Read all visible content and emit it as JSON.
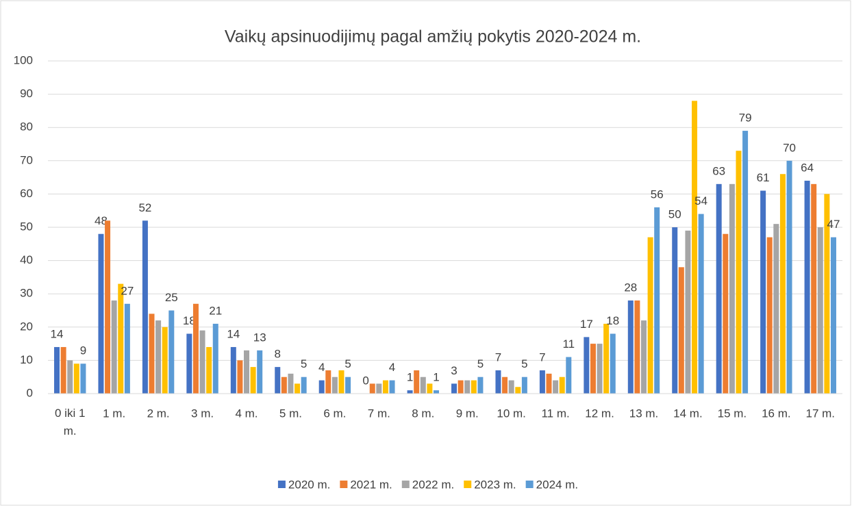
{
  "chart_data": {
    "type": "bar",
    "title": "Vaikų apsinuodijimų pagal amžių pokytis 2020-2024 m.",
    "categories": [
      "0 iki 1 m.",
      "1 m.",
      "2 m.",
      "3 m.",
      "4 m.",
      "5 m.",
      "6 m.",
      "7 m.",
      "8 m.",
      "9 m.",
      "10 m.",
      "11 m.",
      "12 m.",
      "13 m.",
      "14 m.",
      "15 m.",
      "16 m.",
      "17 m."
    ],
    "series": [
      {
        "name": "2020 m.",
        "color": "#4472c4",
        "data_labels": true,
        "values": [
          14,
          48,
          52,
          18,
          14,
          8,
          4,
          0,
          1,
          3,
          7,
          7,
          17,
          28,
          50,
          63,
          61,
          64
        ]
      },
      {
        "name": "2021 m.",
        "color": "#ed7d31",
        "data_labels": false,
        "values": [
          14,
          52,
          24,
          27,
          10,
          5,
          7,
          3,
          7,
          4,
          5,
          6,
          15,
          28,
          38,
          48,
          47,
          63
        ]
      },
      {
        "name": "2022 m.",
        "color": "#a5a5a5",
        "data_labels": false,
        "values": [
          10,
          28,
          22,
          19,
          13,
          6,
          5,
          3,
          5,
          4,
          4,
          4,
          15,
          22,
          49,
          63,
          51,
          50
        ]
      },
      {
        "name": "2023 m.",
        "color": "#ffc000",
        "data_labels": false,
        "values": [
          9,
          33,
          20,
          14,
          8,
          3,
          7,
          4,
          3,
          4,
          2,
          5,
          21,
          47,
          88,
          73,
          66,
          60
        ]
      },
      {
        "name": "2024 m.",
        "color": "#5b9bd5",
        "data_labels": true,
        "values": [
          9,
          27,
          25,
          21,
          13,
          5,
          5,
          4,
          1,
          5,
          5,
          11,
          18,
          56,
          54,
          79,
          70,
          47
        ]
      }
    ],
    "ylim": [
      0,
      100
    ],
    "yticks": [
      0,
      10,
      20,
      30,
      40,
      50,
      60,
      70,
      80,
      90,
      100
    ],
    "grid": true,
    "legend": "bottom"
  }
}
